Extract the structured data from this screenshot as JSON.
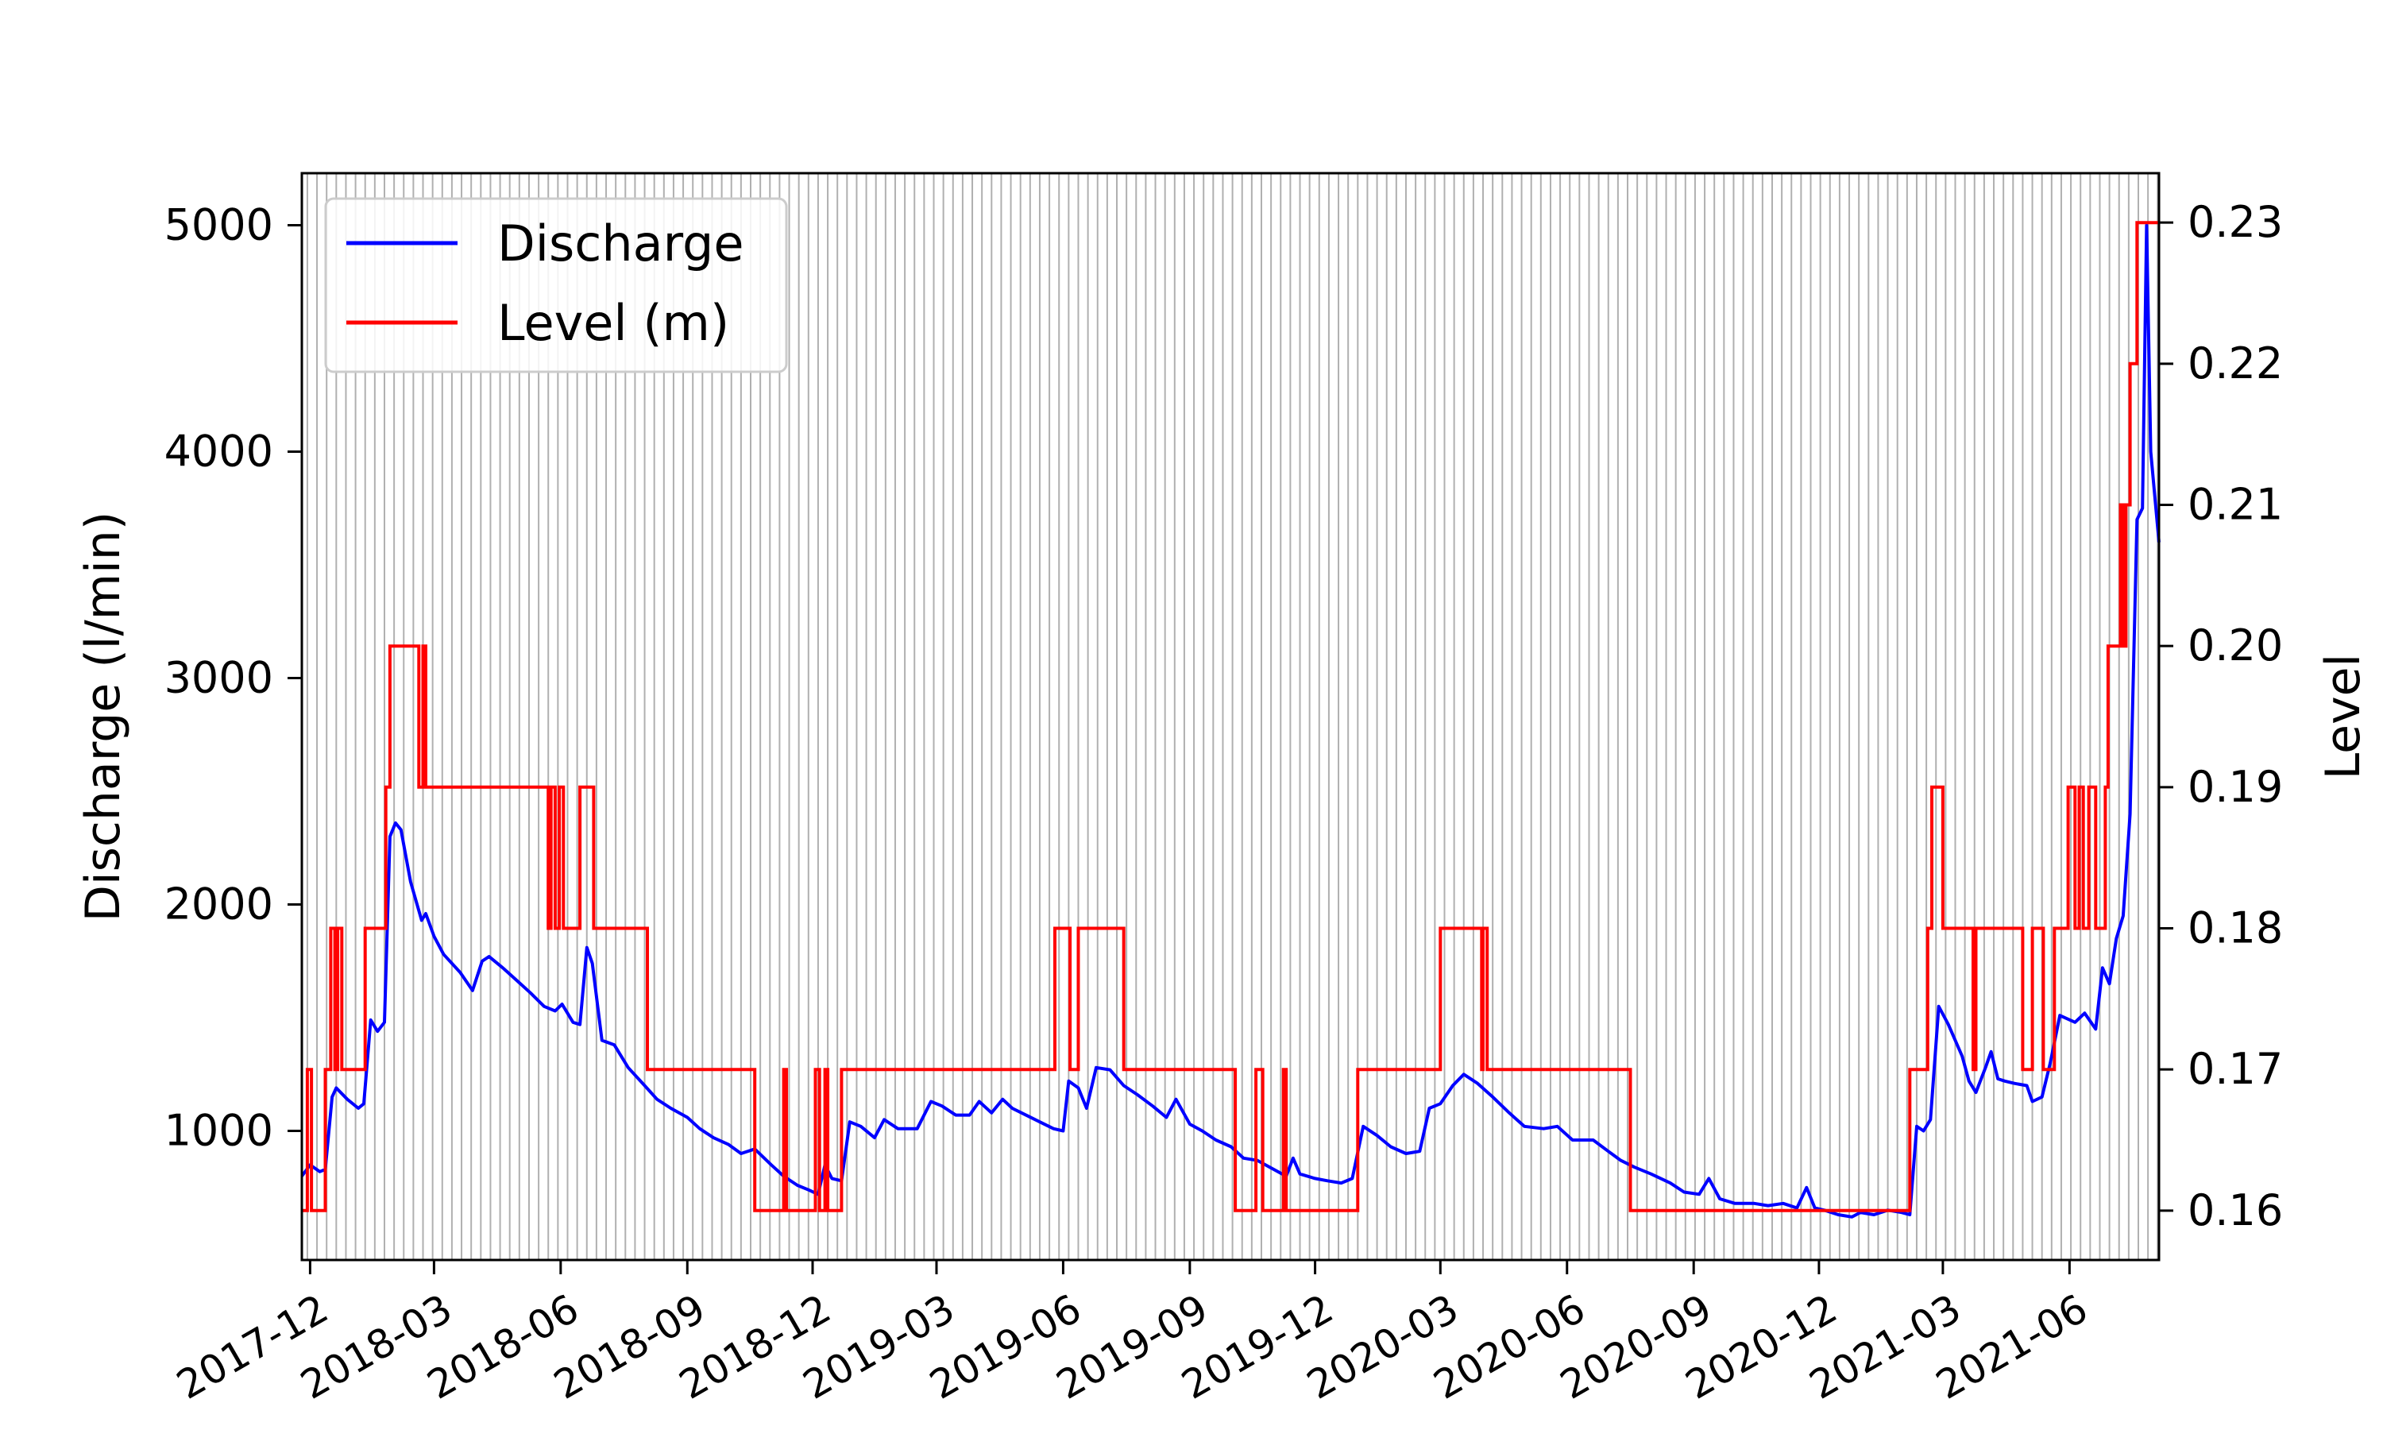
{
  "chart_data": {
    "type": "line",
    "title": "",
    "xlabel": "",
    "ylabel": "Discharge (l/min)",
    "y2label": "Level",
    "xlim": [
      "2017-11-25",
      "2021-08-05"
    ],
    "ylim": [
      430,
      5230
    ],
    "y2lim": [
      0.1565,
      0.2335
    ],
    "xticks": [
      "2017-12",
      "2018-03",
      "2018-06",
      "2018-09",
      "2018-12",
      "2019-03",
      "2019-06",
      "2019-09",
      "2019-12",
      "2020-03",
      "2020-06",
      "2020-09",
      "2020-12",
      "2021-03",
      "2021-06"
    ],
    "yticks": [
      "1000",
      "2000",
      "3000",
      "4000",
      "5000"
    ],
    "y2ticks": [
      "0.16",
      "0.17",
      "0.18",
      "0.19",
      "0.20",
      "0.21",
      "0.22",
      "0.23"
    ],
    "grid": "vertical, weekly",
    "legend": {
      "position": "upper-left",
      "entries": [
        "Discharge",
        "Level (m)"
      ]
    },
    "series": [
      {
        "name": "Discharge",
        "axis": "left",
        "color": "#0000ff",
        "points": [
          [
            "2017-11-25",
            800
          ],
          [
            "2017-12-01",
            850
          ],
          [
            "2017-12-08",
            820
          ],
          [
            "2017-12-12",
            830
          ],
          [
            "2017-12-17",
            1150
          ],
          [
            "2017-12-20",
            1190
          ],
          [
            "2017-12-28",
            1140
          ],
          [
            "2018-01-05",
            1100
          ],
          [
            "2018-01-09",
            1120
          ],
          [
            "2018-01-14",
            1490
          ],
          [
            "2018-01-19",
            1440
          ],
          [
            "2018-01-24",
            1480
          ],
          [
            "2018-01-28",
            2300
          ],
          [
            "2018-02-01",
            2360
          ],
          [
            "2018-02-05",
            2330
          ],
          [
            "2018-02-12",
            2100
          ],
          [
            "2018-02-20",
            1930
          ],
          [
            "2018-02-23",
            1960
          ],
          [
            "2018-03-01",
            1860
          ],
          [
            "2018-03-08",
            1780
          ],
          [
            "2018-03-20",
            1700
          ],
          [
            "2018-03-29",
            1620
          ],
          [
            "2018-04-05",
            1750
          ],
          [
            "2018-04-10",
            1770
          ],
          [
            "2018-04-20",
            1720
          ],
          [
            "2018-05-01",
            1660
          ],
          [
            "2018-05-10",
            1610
          ],
          [
            "2018-05-20",
            1550
          ],
          [
            "2018-05-28",
            1530
          ],
          [
            "2018-06-02",
            1560
          ],
          [
            "2018-06-10",
            1480
          ],
          [
            "2018-06-15",
            1470
          ],
          [
            "2018-06-20",
            1810
          ],
          [
            "2018-06-24",
            1740
          ],
          [
            "2018-07-01",
            1400
          ],
          [
            "2018-07-10",
            1380
          ],
          [
            "2018-07-20",
            1280
          ],
          [
            "2018-08-01",
            1200
          ],
          [
            "2018-08-10",
            1140
          ],
          [
            "2018-08-20",
            1100
          ],
          [
            "2018-09-01",
            1060
          ],
          [
            "2018-09-10",
            1010
          ],
          [
            "2018-09-20",
            970
          ],
          [
            "2018-10-01",
            940
          ],
          [
            "2018-10-10",
            900
          ],
          [
            "2018-10-20",
            920
          ],
          [
            "2018-11-01",
            850
          ],
          [
            "2018-11-10",
            800
          ],
          [
            "2018-11-20",
            760
          ],
          [
            "2018-11-28",
            740
          ],
          [
            "2018-12-05",
            720
          ],
          [
            "2018-12-10",
            850
          ],
          [
            "2018-12-15",
            790
          ],
          [
            "2018-12-22",
            780
          ],
          [
            "2018-12-28",
            1040
          ],
          [
            "2019-01-05",
            1020
          ],
          [
            "2019-01-15",
            970
          ],
          [
            "2019-01-22",
            1050
          ],
          [
            "2019-02-01",
            1010
          ],
          [
            "2019-02-15",
            1010
          ],
          [
            "2019-02-25",
            1130
          ],
          [
            "2019-03-05",
            1110
          ],
          [
            "2019-03-15",
            1070
          ],
          [
            "2019-03-25",
            1070
          ],
          [
            "2019-04-01",
            1130
          ],
          [
            "2019-04-10",
            1080
          ],
          [
            "2019-04-18",
            1140
          ],
          [
            "2019-04-25",
            1100
          ],
          [
            "2019-05-05",
            1070
          ],
          [
            "2019-05-15",
            1040
          ],
          [
            "2019-05-25",
            1010
          ],
          [
            "2019-06-01",
            1000
          ],
          [
            "2019-06-05",
            1220
          ],
          [
            "2019-06-12",
            1190
          ],
          [
            "2019-06-18",
            1100
          ],
          [
            "2019-06-25",
            1280
          ],
          [
            "2019-07-05",
            1270
          ],
          [
            "2019-07-15",
            1200
          ],
          [
            "2019-07-25",
            1160
          ],
          [
            "2019-08-05",
            1110
          ],
          [
            "2019-08-15",
            1060
          ],
          [
            "2019-08-22",
            1140
          ],
          [
            "2019-09-01",
            1030
          ],
          [
            "2019-09-10",
            1000
          ],
          [
            "2019-09-20",
            960
          ],
          [
            "2019-10-01",
            930
          ],
          [
            "2019-10-10",
            880
          ],
          [
            "2019-10-20",
            870
          ],
          [
            "2019-11-01",
            830
          ],
          [
            "2019-11-10",
            800
          ],
          [
            "2019-11-15",
            880
          ],
          [
            "2019-11-20",
            810
          ],
          [
            "2019-12-01",
            790
          ],
          [
            "2019-12-10",
            780
          ],
          [
            "2019-12-20",
            770
          ],
          [
            "2019-12-28",
            790
          ],
          [
            "2020-01-05",
            1020
          ],
          [
            "2020-01-15",
            980
          ],
          [
            "2020-01-25",
            930
          ],
          [
            "2020-02-05",
            900
          ],
          [
            "2020-02-15",
            910
          ],
          [
            "2020-02-22",
            1100
          ],
          [
            "2020-03-01",
            1120
          ],
          [
            "2020-03-10",
            1200
          ],
          [
            "2020-03-18",
            1250
          ],
          [
            "2020-03-28",
            1210
          ],
          [
            "2020-04-08",
            1150
          ],
          [
            "2020-04-20",
            1080
          ],
          [
            "2020-05-01",
            1020
          ],
          [
            "2020-05-15",
            1010
          ],
          [
            "2020-05-25",
            1020
          ],
          [
            "2020-06-05",
            960
          ],
          [
            "2020-06-20",
            960
          ],
          [
            "2020-07-01",
            910
          ],
          [
            "2020-07-10",
            870
          ],
          [
            "2020-07-20",
            840
          ],
          [
            "2020-08-01",
            810
          ],
          [
            "2020-08-15",
            770
          ],
          [
            "2020-08-25",
            730
          ],
          [
            "2020-09-05",
            720
          ],
          [
            "2020-09-12",
            790
          ],
          [
            "2020-09-20",
            700
          ],
          [
            "2020-10-01",
            680
          ],
          [
            "2020-10-15",
            680
          ],
          [
            "2020-10-25",
            670
          ],
          [
            "2020-11-05",
            680
          ],
          [
            "2020-11-15",
            660
          ],
          [
            "2020-11-22",
            750
          ],
          [
            "2020-11-28",
            660
          ],
          [
            "2020-12-05",
            650
          ],
          [
            "2020-12-15",
            630
          ],
          [
            "2020-12-25",
            620
          ],
          [
            "2020-12-31",
            640
          ],
          [
            "2021-01-10",
            630
          ],
          [
            "2021-01-20",
            650
          ],
          [
            "2021-01-30",
            640
          ],
          [
            "2021-02-05",
            630
          ],
          [
            "2021-02-10",
            1020
          ],
          [
            "2021-02-15",
            1000
          ],
          [
            "2021-02-20",
            1050
          ],
          [
            "2021-02-26",
            1550
          ],
          [
            "2021-03-05",
            1470
          ],
          [
            "2021-03-15",
            1330
          ],
          [
            "2021-03-20",
            1220
          ],
          [
            "2021-03-25",
            1170
          ],
          [
            "2021-04-01",
            1280
          ],
          [
            "2021-04-05",
            1350
          ],
          [
            "2021-04-10",
            1230
          ],
          [
            "2021-04-15",
            1220
          ],
          [
            "2021-04-22",
            1210
          ],
          [
            "2021-05-01",
            1200
          ],
          [
            "2021-05-05",
            1130
          ],
          [
            "2021-05-12",
            1150
          ],
          [
            "2021-05-18",
            1300
          ],
          [
            "2021-05-25",
            1510
          ],
          [
            "2021-06-05",
            1480
          ],
          [
            "2021-06-12",
            1520
          ],
          [
            "2021-06-20",
            1450
          ],
          [
            "2021-06-25",
            1720
          ],
          [
            "2021-06-30",
            1650
          ],
          [
            "2021-07-05",
            1850
          ],
          [
            "2021-07-10",
            1950
          ],
          [
            "2021-07-15",
            2400
          ],
          [
            "2021-07-20",
            3700
          ],
          [
            "2021-07-24",
            3750
          ],
          [
            "2021-07-27",
            5000
          ],
          [
            "2021-07-30",
            4000
          ],
          [
            "2021-08-02",
            3800
          ],
          [
            "2021-08-05",
            3600
          ]
        ]
      },
      {
        "name": "Level (m)",
        "axis": "right",
        "color": "#ff0000",
        "steps": [
          [
            "2017-11-25",
            0.16
          ],
          [
            "2017-11-29",
            0.17
          ],
          [
            "2017-12-02",
            0.16
          ],
          [
            "2017-12-12",
            0.17
          ],
          [
            "2017-12-16",
            0.18
          ],
          [
            "2017-12-19",
            0.17
          ],
          [
            "2017-12-21",
            0.18
          ],
          [
            "2017-12-24",
            0.17
          ],
          [
            "2018-01-10",
            0.18
          ],
          [
            "2018-01-25",
            0.19
          ],
          [
            "2018-01-28",
            0.2
          ],
          [
            "2018-02-18",
            0.19
          ],
          [
            "2018-02-21",
            0.2
          ],
          [
            "2018-02-23",
            0.19
          ],
          [
            "2018-05-23",
            0.18
          ],
          [
            "2018-05-25",
            0.19
          ],
          [
            "2018-05-28",
            0.18
          ],
          [
            "2018-05-31",
            0.19
          ],
          [
            "2018-06-03",
            0.18
          ],
          [
            "2018-06-15",
            0.19
          ],
          [
            "2018-06-25",
            0.18
          ],
          [
            "2018-08-03",
            0.17
          ],
          [
            "2018-10-20",
            0.16
          ],
          [
            "2018-11-10",
            0.17
          ],
          [
            "2018-11-12",
            0.16
          ],
          [
            "2018-12-03",
            0.17
          ],
          [
            "2018-12-06",
            0.16
          ],
          [
            "2018-12-10",
            0.17
          ],
          [
            "2018-12-12",
            0.16
          ],
          [
            "2018-12-22",
            0.17
          ],
          [
            "2019-05-26",
            0.18
          ],
          [
            "2019-06-06",
            0.17
          ],
          [
            "2019-06-12",
            0.18
          ],
          [
            "2019-07-15",
            0.17
          ],
          [
            "2019-10-04",
            0.16
          ],
          [
            "2019-10-19",
            0.17
          ],
          [
            "2019-10-24",
            0.16
          ],
          [
            "2019-11-08",
            0.17
          ],
          [
            "2019-11-10",
            0.16
          ],
          [
            "2020-01-01",
            0.17
          ],
          [
            "2020-03-01",
            0.18
          ],
          [
            "2020-03-31",
            0.17
          ],
          [
            "2020-04-01",
            0.18
          ],
          [
            "2020-04-04",
            0.17
          ],
          [
            "2020-07-17",
            0.16
          ],
          [
            "2021-02-05",
            0.17
          ],
          [
            "2021-02-18",
            0.18
          ],
          [
            "2021-02-21",
            0.19
          ],
          [
            "2021-03-01",
            0.18
          ],
          [
            "2021-03-23",
            0.17
          ],
          [
            "2021-03-25",
            0.18
          ],
          [
            "2021-04-28",
            0.17
          ],
          [
            "2021-05-05",
            0.18
          ],
          [
            "2021-05-13",
            0.17
          ],
          [
            "2021-05-21",
            0.18
          ],
          [
            "2021-05-31",
            0.19
          ],
          [
            "2021-06-05",
            0.18
          ],
          [
            "2021-06-08",
            0.19
          ],
          [
            "2021-06-11",
            0.18
          ],
          [
            "2021-06-15",
            0.19
          ],
          [
            "2021-06-20",
            0.18
          ],
          [
            "2021-06-27",
            0.19
          ],
          [
            "2021-06-29",
            0.2
          ],
          [
            "2021-07-08",
            0.21
          ],
          [
            "2021-07-10",
            0.2
          ],
          [
            "2021-07-12",
            0.21
          ],
          [
            "2021-07-15",
            0.22
          ],
          [
            "2021-07-20",
            0.23
          ],
          [
            "2021-08-05",
            0.23
          ]
        ]
      }
    ]
  }
}
